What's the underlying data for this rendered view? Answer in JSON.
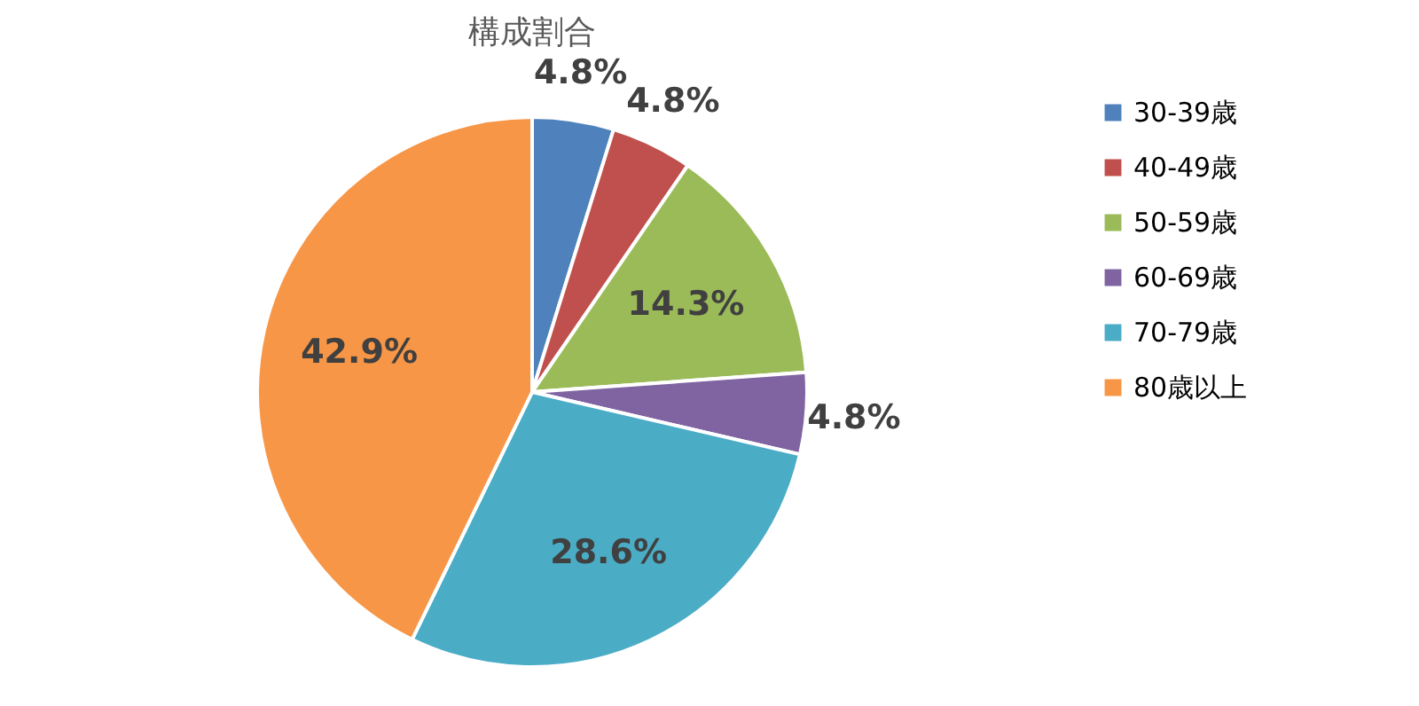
{
  "chart_data": {
    "type": "pie",
    "title": "構成割合",
    "categories": [
      "30-39歳",
      "40-49歳",
      "50-59歳",
      "60-69歳",
      "70-79歳",
      "80歳以上"
    ],
    "values": [
      4.8,
      4.8,
      14.3,
      4.8,
      28.6,
      42.9
    ],
    "colors": [
      "#4f81bd",
      "#c0504d",
      "#9bbb59",
      "#8064a2",
      "#4bacc6",
      "#f79646"
    ],
    "value_labels": [
      "4.8%",
      "4.8%",
      "14.3%",
      "4.8%",
      "28.6%",
      "42.9%"
    ],
    "legend": "right"
  }
}
